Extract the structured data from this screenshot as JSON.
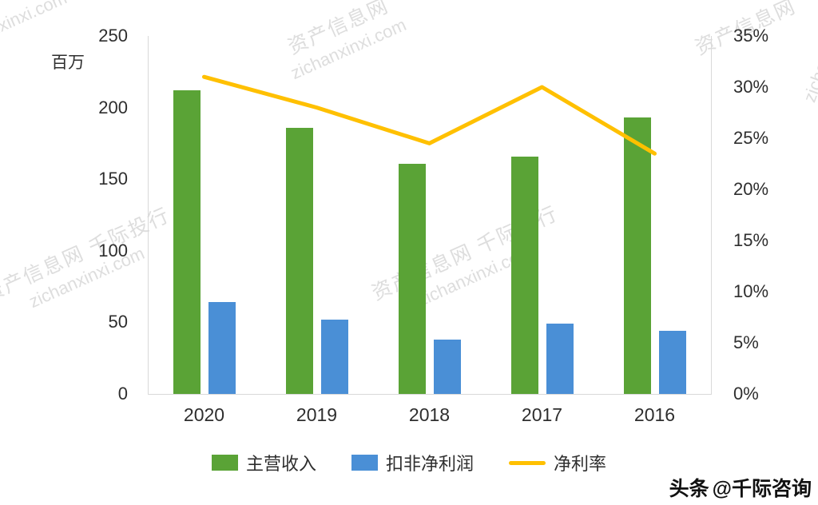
{
  "chart_data": {
    "type": "combo",
    "title": "",
    "categories": [
      "2020",
      "2019",
      "2018",
      "2017",
      "2016"
    ],
    "series": [
      {
        "name": "主营收入",
        "type": "bar",
        "axis": "left",
        "color": "#5AA336",
        "values": [
          212,
          186,
          161,
          166,
          193
        ]
      },
      {
        "name": "扣非净利润",
        "type": "bar",
        "axis": "left",
        "color": "#4A8FD6",
        "values": [
          64,
          52,
          38,
          49,
          44
        ]
      },
      {
        "name": "净利率",
        "type": "line",
        "axis": "right",
        "color": "#FFC000",
        "values": [
          31,
          28,
          24.5,
          30,
          23.5
        ]
      }
    ],
    "left_axis": {
      "title": "百万",
      "min": 0,
      "max": 250,
      "step": 50,
      "ticks": [
        "0",
        "50",
        "100",
        "150",
        "200",
        "250"
      ]
    },
    "right_axis": {
      "min": 0,
      "max": 35,
      "step": 5,
      "ticks": [
        "0%",
        "5%",
        "10%",
        "15%",
        "20%",
        "25%",
        "30%",
        "35%"
      ]
    },
    "legend_position": "bottom",
    "gridlines": false
  },
  "watermark": {
    "site_cn": "资产信息网",
    "brand_cn": "千际投行",
    "domain": "zichanxinxi.com"
  },
  "footer": {
    "brand": "头条",
    "handle": "@千际咨询"
  }
}
